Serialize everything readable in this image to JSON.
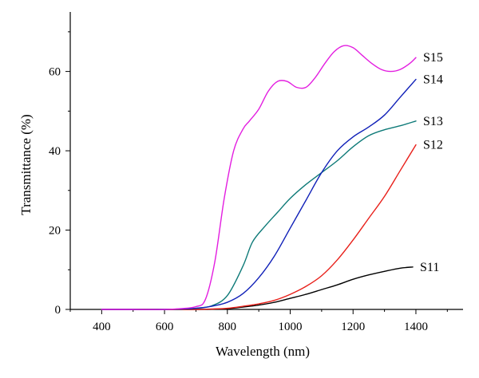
{
  "chart_data": {
    "type": "line",
    "title": "",
    "xlabel": "Wavelength (nm)",
    "ylabel": "Transmittance (%)",
    "xlim": [
      300,
      1550
    ],
    "ylim": [
      0,
      75
    ],
    "xticks": [
      400,
      600,
      800,
      1000,
      1200,
      1400
    ],
    "yticks": [
      0,
      20,
      40,
      60
    ],
    "grid": false,
    "legend": "inline-right",
    "series": [
      {
        "name": "S11",
        "color": "#000000",
        "x": [
          400,
          500,
          600,
          700,
          750,
          800,
          850,
          900,
          950,
          1000,
          1050,
          1100,
          1150,
          1200,
          1250,
          1300,
          1350,
          1390
        ],
        "y": [
          0,
          0,
          0,
          0,
          0.05,
          0.2,
          0.6,
          1.1,
          1.8,
          2.8,
          3.8,
          5.0,
          6.2,
          7.6,
          8.7,
          9.6,
          10.4,
          10.7
        ]
      },
      {
        "name": "S12",
        "color": "#e8201a",
        "x": [
          400,
          500,
          600,
          700,
          750,
          800,
          850,
          900,
          950,
          1000,
          1050,
          1100,
          1150,
          1200,
          1250,
          1300,
          1350,
          1400
        ],
        "y": [
          0,
          0,
          0,
          0,
          0.1,
          0.3,
          0.8,
          1.4,
          2.3,
          3.8,
          5.8,
          8.5,
          12.5,
          17.5,
          23.0,
          28.5,
          35.0,
          41.5
        ]
      },
      {
        "name": "S13",
        "color": "#0e7a78",
        "x": [
          400,
          500,
          600,
          650,
          700,
          750,
          800,
          850,
          880,
          920,
          960,
          1000,
          1050,
          1100,
          1150,
          1200,
          1250,
          1300,
          1350,
          1400
        ],
        "y": [
          0,
          0,
          0,
          0.1,
          0.3,
          0.9,
          3.5,
          11.0,
          17.0,
          21.0,
          24.5,
          28.0,
          31.5,
          34.5,
          37.5,
          41.0,
          43.8,
          45.3,
          46.3,
          47.5
        ]
      },
      {
        "name": "S14",
        "color": "#1020b8",
        "x": [
          400,
          500,
          600,
          650,
          700,
          750,
          800,
          850,
          900,
          950,
          1000,
          1050,
          1100,
          1150,
          1200,
          1250,
          1300,
          1350,
          1400
        ],
        "y": [
          0,
          0,
          0,
          0.1,
          0.3,
          0.8,
          1.8,
          4.0,
          8.0,
          13.5,
          20.5,
          27.5,
          34.5,
          40.0,
          43.5,
          46.0,
          49.0,
          53.5,
          58.0
        ]
      },
      {
        "name": "S15",
        "color": "#e31ee0",
        "x": [
          400,
          500,
          600,
          650,
          700,
          730,
          760,
          790,
          820,
          850,
          870,
          900,
          930,
          960,
          990,
          1020,
          1050,
          1080,
          1110,
          1140,
          1170,
          1200,
          1230,
          1260,
          1290,
          1320,
          1350,
          1380,
          1400
        ],
        "y": [
          0,
          0,
          0,
          0.2,
          0.7,
          2.5,
          12.0,
          28.0,
          40.0,
          45.5,
          47.5,
          50.5,
          55.0,
          57.5,
          57.5,
          56.0,
          56.0,
          58.5,
          62.0,
          65.0,
          66.5,
          66.0,
          64.0,
          62.0,
          60.5,
          60.0,
          60.5,
          62.0,
          63.5
        ]
      }
    ]
  }
}
